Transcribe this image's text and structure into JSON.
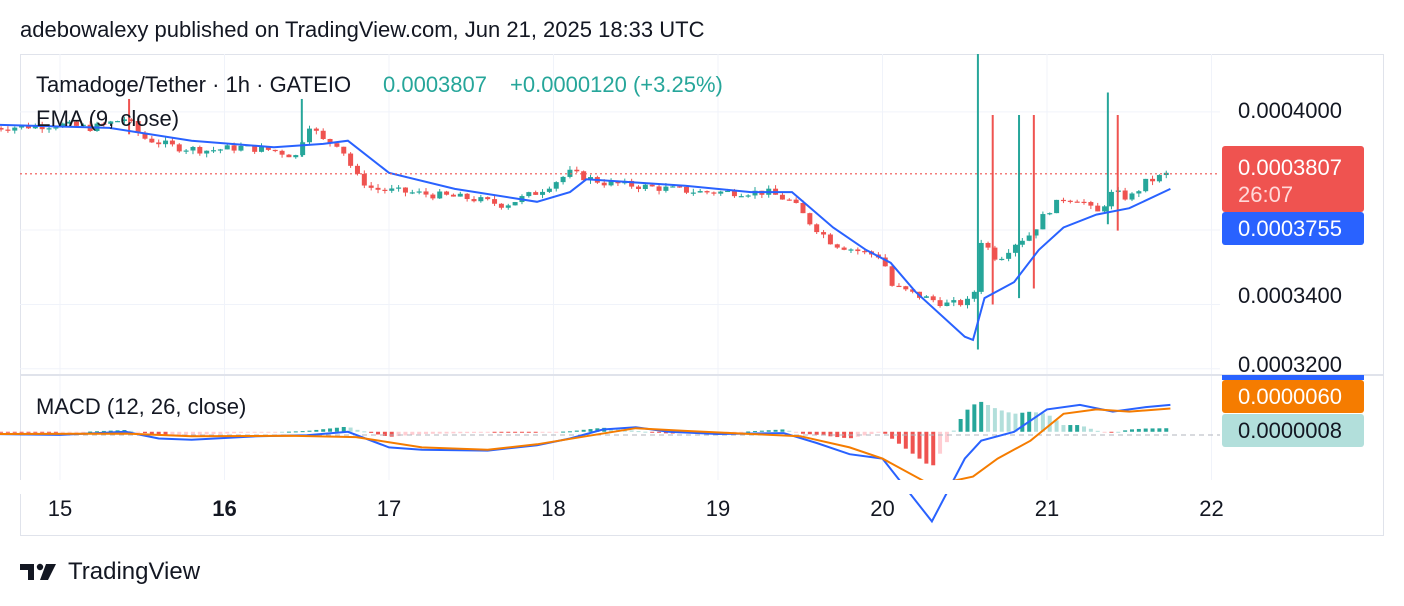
{
  "header": {
    "caption": "adebowalexy published on TradingView.com, Jun 21, 2025 18:33 UTC"
  },
  "footer": {
    "brand": "TradingView"
  },
  "colors": {
    "up": "#26a69a",
    "down": "#ef5350",
    "ema": "#2962ff",
    "signal": "#f57c00",
    "hist_up": "#26a69a",
    "hist_up_light": "#b2dfdb",
    "hist_down": "#ef5350",
    "hist_down_light": "#ffcdd2",
    "grid": "#f0f3fa",
    "price_line": "#ef5350"
  },
  "chart_data": {
    "type": "candlestick",
    "title": "Tamadoge/Tether · 1h · GATEIO",
    "last_price": "0.0003807",
    "change": "+0.0000120 (+3.25%)",
    "indicator_ema_label": "EMA (9, close)",
    "indicator_macd_label": "MACD (12, 26, close)",
    "price_axis_ticks": [
      "0.0004000",
      "0.0003400",
      "0.0003200"
    ],
    "price_axis_values": [
      0.0004,
      0.00034,
      0.00032
    ],
    "price_label": {
      "value": "0.0003807",
      "countdown": "26:07"
    },
    "ema_label": "0.0003755",
    "macd_labels": {
      "macd": "0.0000060",
      "histogram": "0.0000008"
    },
    "x_ticks": [
      {
        "label": "15",
        "day": 15,
        "bold": false
      },
      {
        "label": "16",
        "day": 16,
        "bold": true
      },
      {
        "label": "17",
        "day": 17,
        "bold": false
      },
      {
        "label": "18",
        "day": 18,
        "bold": false
      },
      {
        "label": "19",
        "day": 19,
        "bold": false
      },
      {
        "label": "20",
        "day": 20,
        "bold": false
      },
      {
        "label": "21",
        "day": 21,
        "bold": false
      },
      {
        "label": "22",
        "day": 22,
        "bold": false
      }
    ],
    "ylim": [
      0.000319,
      0.000418
    ],
    "price_path": [
      [
        14.6,
        0.000395
      ],
      [
        15.0,
        0.000396
      ],
      [
        15.2,
        0.000395
      ],
      [
        15.4,
        0.000398
      ],
      [
        15.5,
        0.000392
      ],
      [
        15.7,
        0.000389
      ],
      [
        15.9,
        0.000388
      ],
      [
        16.1,
        0.000389
      ],
      [
        16.3,
        0.000388
      ],
      [
        16.45,
        0.000386
      ],
      [
        16.5,
        0.000397
      ],
      [
        16.6,
        0.000391
      ],
      [
        16.7,
        0.00039
      ],
      [
        16.8,
        0.00038
      ],
      [
        16.9,
        0.000376
      ],
      [
        17.1,
        0.000375
      ],
      [
        17.3,
        0.000374
      ],
      [
        17.5,
        0.000373
      ],
      [
        17.7,
        0.000371
      ],
      [
        17.9,
        0.000375
      ],
      [
        18.1,
        0.000381
      ],
      [
        18.3,
        0.000378
      ],
      [
        18.5,
        0.000377
      ],
      [
        18.7,
        0.000376
      ],
      [
        18.9,
        0.000375
      ],
      [
        19.1,
        0.000375
      ],
      [
        19.3,
        0.000375
      ],
      [
        19.45,
        0.000372
      ],
      [
        19.55,
        0.000366
      ],
      [
        19.7,
        0.000359
      ],
      [
        19.9,
        0.000356
      ],
      [
        20.0,
        0.000355
      ],
      [
        20.05,
        0.000346
      ],
      [
        20.2,
        0.000343
      ],
      [
        20.4,
        0.00034
      ],
      [
        20.55,
        0.000341
      ],
      [
        20.6,
        0.00036
      ],
      [
        20.7,
        0.000354
      ],
      [
        20.8,
        0.000359
      ],
      [
        20.9,
        0.000362
      ],
      [
        21.0,
        0.000369
      ],
      [
        21.1,
        0.000373
      ],
      [
        21.2,
        0.000373
      ],
      [
        21.3,
        0.000368
      ],
      [
        21.4,
        0.000375
      ],
      [
        21.5,
        0.000373
      ],
      [
        21.6,
        0.000378
      ],
      [
        21.7,
        0.00038
      ],
      [
        21.75,
        0.000381
      ]
    ],
    "spikes": [
      {
        "day": 20.58,
        "high": 0.000418,
        "low": 0.000326
      },
      {
        "day": 20.67,
        "high": 0.000399,
        "low": 0.00034
      },
      {
        "day": 20.83,
        "high": 0.000399,
        "low": 0.000342
      },
      {
        "day": 20.92,
        "high": 0.000399,
        "low": 0.000345
      },
      {
        "day": 21.37,
        "high": 0.000406,
        "low": 0.000365
      },
      {
        "day": 21.43,
        "high": 0.000399,
        "low": 0.000363
      },
      {
        "day": 16.47,
        "high": 0.000404,
        "low": 0.000386
      },
      {
        "day": 15.42,
        "high": 0.000404,
        "low": 0.000393
      }
    ],
    "ema_path": [
      [
        14.6,
        0.000396
      ],
      [
        15.3,
        0.000395
      ],
      [
        15.8,
        0.000391
      ],
      [
        16.3,
        0.000389
      ],
      [
        16.6,
        0.00039
      ],
      [
        16.75,
        0.000391
      ],
      [
        17.0,
        0.000381
      ],
      [
        17.4,
        0.000376
      ],
      [
        17.9,
        0.000372
      ],
      [
        18.1,
        0.000375
      ],
      [
        18.2,
        0.000379
      ],
      [
        18.5,
        0.000378
      ],
      [
        18.8,
        0.000377
      ],
      [
        19.2,
        0.000375
      ],
      [
        19.45,
        0.000375
      ],
      [
        19.7,
        0.000364
      ],
      [
        19.9,
        0.000357
      ],
      [
        20.05,
        0.000353
      ],
      [
        20.2,
        0.000344
      ],
      [
        20.5,
        0.00033
      ],
      [
        20.55,
        0.000329
      ],
      [
        20.62,
        0.000342
      ],
      [
        20.8,
        0.000347
      ],
      [
        20.95,
        0.000357
      ],
      [
        21.1,
        0.000364
      ],
      [
        21.3,
        0.000368
      ],
      [
        21.5,
        0.00037
      ],
      [
        21.75,
        0.000376
      ]
    ],
    "macd_ylim": [
      -1.3e-05,
      1.2e-05
    ],
    "macd_path": [
      [
        14.6,
        -5e-07
      ],
      [
        15.0,
        -7e-07
      ],
      [
        15.4,
        0.0
      ],
      [
        15.6,
        -1.5e-06
      ],
      [
        15.8,
        -1.8e-06
      ],
      [
        16.2,
        -1e-06
      ],
      [
        16.5,
        -8e-07
      ],
      [
        16.75,
        0.0
      ],
      [
        17.0,
        -3.5e-06
      ],
      [
        17.2,
        -4e-06
      ],
      [
        17.6,
        -4.2e-06
      ],
      [
        17.9,
        -3e-06
      ],
      [
        18.1,
        -1.5e-06
      ],
      [
        18.3,
        5e-07
      ],
      [
        18.5,
        1e-06
      ],
      [
        18.7,
        0.0
      ],
      [
        19.0,
        -5e-07
      ],
      [
        19.4,
        -3e-07
      ],
      [
        19.6,
        -2.5e-06
      ],
      [
        19.8,
        -5e-06
      ],
      [
        20.0,
        -6e-06
      ],
      [
        20.3,
        -2e-05
      ],
      [
        20.5,
        -6e-06
      ],
      [
        20.6,
        -2e-06
      ],
      [
        20.8,
        0.0
      ],
      [
        21.0,
        5e-06
      ],
      [
        21.2,
        6e-06
      ],
      [
        21.4,
        4.5e-06
      ],
      [
        21.6,
        5.5e-06
      ],
      [
        21.75,
        6e-06
      ]
    ],
    "signal_path": [
      [
        14.6,
        -5e-07
      ],
      [
        15.4,
        -4e-07
      ],
      [
        15.8,
        -1e-06
      ],
      [
        16.4,
        -9e-07
      ],
      [
        16.8,
        -1.2e-06
      ],
      [
        17.2,
        -3.5e-06
      ],
      [
        17.6,
        -4e-06
      ],
      [
        17.9,
        -2.8e-06
      ],
      [
        18.2,
        -1e-06
      ],
      [
        18.5,
        8e-07
      ],
      [
        18.8,
        2e-07
      ],
      [
        19.2,
        -5e-07
      ],
      [
        19.5,
        -1e-06
      ],
      [
        19.8,
        -3.5e-06
      ],
      [
        20.0,
        -6e-06
      ],
      [
        20.3,
        -1.2e-05
      ],
      [
        20.55,
        -1e-05
      ],
      [
        20.7,
        -6e-06
      ],
      [
        20.9,
        -2e-06
      ],
      [
        21.1,
        4e-06
      ],
      [
        21.3,
        5e-06
      ],
      [
        21.5,
        4.5e-06
      ],
      [
        21.75,
        5.2e-06
      ]
    ]
  }
}
